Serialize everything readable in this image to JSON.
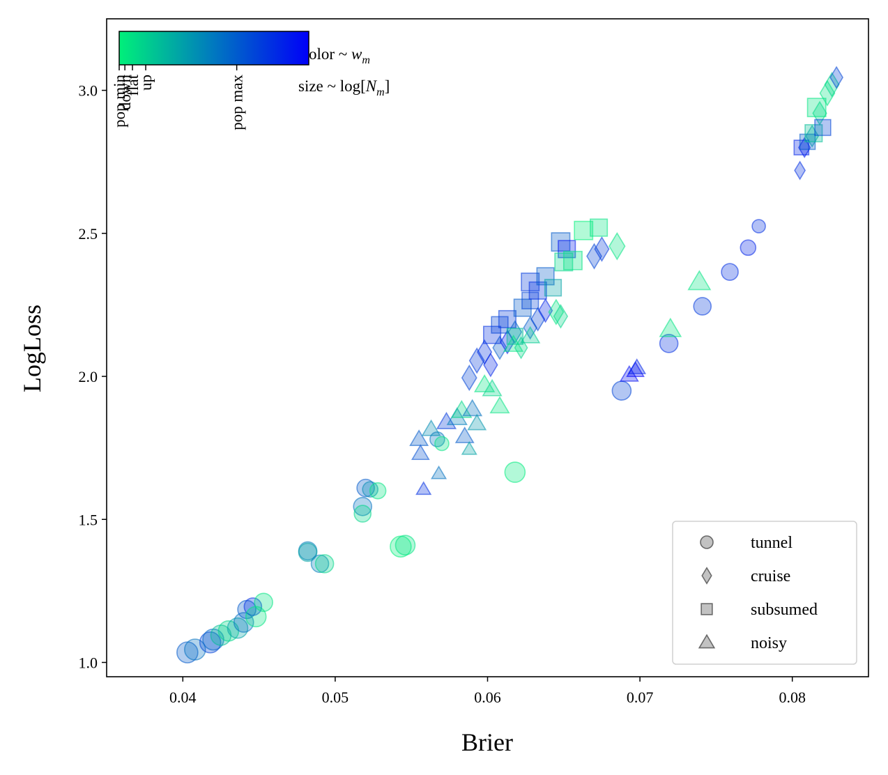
{
  "chart_data": {
    "type": "scatter",
    "xlabel": "Brier",
    "ylabel": "LogLoss",
    "xlim": [
      0.035,
      0.085
    ],
    "ylim": [
      0.95,
      3.25
    ],
    "xticks": [
      "0.04",
      "0.05",
      "0.06",
      "0.07",
      "0.08"
    ],
    "xtick_values": [
      0.04,
      0.05,
      0.06,
      0.07,
      0.08
    ],
    "yticks": [
      "1.0",
      "1.5",
      "2.0",
      "2.5",
      "3.0"
    ],
    "ytick_values": [
      1.0,
      1.5,
      2.0,
      2.5,
      3.0
    ],
    "grid": false,
    "legend": {
      "placement": "lower-right",
      "entries": [
        {
          "label": "tunnel",
          "marker": "circle"
        },
        {
          "label": "cruise",
          "marker": "diamond"
        },
        {
          "label": "subsumed",
          "marker": "square"
        },
        {
          "label": "noisy",
          "marker": "triangle"
        }
      ]
    },
    "colorbar": {
      "placement": "top-left",
      "colormap": [
        "#00f07a",
        "#0070c0",
        "#0000f8"
      ],
      "tick_labels": [
        "pop min",
        "down",
        "flat",
        "up",
        "pop max"
      ],
      "tick_positions": [
        0.0,
        0.03,
        0.07,
        0.14,
        0.62
      ],
      "annotation_color_prefix": "olor ~ ",
      "annotation_color_math": "w",
      "annotation_color_sub": "m",
      "annotation_size_prefix": "size ~ log[",
      "annotation_size_math": "N",
      "annotation_size_sub": "m",
      "annotation_size_suffix": "]"
    },
    "series": [
      {
        "marker": "circle",
        "points": [
          [
            0.0403,
            1.035,
            0.6,
            1.0
          ],
          [
            0.0408,
            1.045,
            0.5,
            1.0
          ],
          [
            0.0418,
            1.07,
            0.7,
            1.0
          ],
          [
            0.042,
            1.08,
            0.55,
            1.0
          ],
          [
            0.0425,
            1.095,
            0.2,
            0.95
          ],
          [
            0.043,
            1.11,
            0.1,
            0.95
          ],
          [
            0.0436,
            1.12,
            0.3,
            0.95
          ],
          [
            0.044,
            1.14,
            0.5,
            0.9
          ],
          [
            0.0442,
            1.185,
            0.6,
            0.8
          ],
          [
            0.0446,
            1.195,
            0.8,
            0.75
          ],
          [
            0.0448,
            1.16,
            0.05,
            0.95
          ],
          [
            0.0453,
            1.21,
            0.05,
            0.8
          ],
          [
            0.0482,
            1.39,
            0.45,
            0.8
          ],
          [
            0.0482,
            1.385,
            0.3,
            0.8
          ],
          [
            0.049,
            1.345,
            0.45,
            0.75
          ],
          [
            0.0493,
            1.345,
            0.1,
            0.8
          ],
          [
            0.0518,
            1.545,
            0.5,
            0.8
          ],
          [
            0.0518,
            1.52,
            0.1,
            0.7
          ],
          [
            0.052,
            1.61,
            0.6,
            0.75
          ],
          [
            0.0523,
            1.605,
            0.4,
            0.6
          ],
          [
            0.0528,
            1.6,
            0.05,
            0.65
          ],
          [
            0.0543,
            1.405,
            0.0,
            1.0
          ],
          [
            0.0546,
            1.41,
            0.05,
            0.9
          ],
          [
            0.0567,
            1.78,
            0.5,
            0.55
          ],
          [
            0.057,
            1.765,
            0.05,
            0.5
          ],
          [
            0.0618,
            1.665,
            0.02,
            0.95
          ],
          [
            0.0688,
            1.95,
            0.7,
            0.85
          ],
          [
            0.0719,
            2.115,
            0.8,
            0.8
          ],
          [
            0.0741,
            2.245,
            0.75,
            0.75
          ],
          [
            0.0759,
            2.365,
            0.8,
            0.7
          ],
          [
            0.0771,
            2.45,
            0.85,
            0.6
          ],
          [
            0.0778,
            2.525,
            0.8,
            0.45
          ]
        ]
      },
      {
        "marker": "diamond",
        "points": [
          [
            0.0588,
            1.995,
            0.7,
            0.9
          ],
          [
            0.0593,
            2.055,
            0.75,
            0.9
          ],
          [
            0.0598,
            2.085,
            0.8,
            0.85
          ],
          [
            0.0602,
            2.04,
            0.85,
            0.8
          ],
          [
            0.0608,
            2.1,
            0.6,
            0.8
          ],
          [
            0.0613,
            2.12,
            0.9,
            0.8
          ],
          [
            0.0618,
            2.155,
            0.5,
            0.75
          ],
          [
            0.0622,
            2.1,
            0.1,
            0.7
          ],
          [
            0.0628,
            2.17,
            0.6,
            0.75
          ],
          [
            0.0633,
            2.2,
            0.7,
            0.8
          ],
          [
            0.0638,
            2.23,
            0.85,
            0.8
          ],
          [
            0.0645,
            2.225,
            0.05,
            0.9
          ],
          [
            0.0648,
            2.21,
            0.1,
            0.8
          ],
          [
            0.067,
            2.42,
            0.7,
            0.9
          ],
          [
            0.0675,
            2.445,
            0.75,
            0.85
          ],
          [
            0.0685,
            2.455,
            0.05,
            1.0
          ],
          [
            0.0805,
            2.72,
            0.8,
            0.5
          ],
          [
            0.0808,
            2.8,
            0.9,
            0.6
          ],
          [
            0.0813,
            2.84,
            0.3,
            0.7
          ],
          [
            0.0818,
            2.92,
            0.1,
            0.8
          ],
          [
            0.0823,
            2.99,
            0.05,
            0.9
          ],
          [
            0.0826,
            3.02,
            0.1,
            0.85
          ],
          [
            0.0829,
            3.045,
            0.7,
            0.7
          ]
        ]
      },
      {
        "marker": "square",
        "points": [
          [
            0.0603,
            2.145,
            0.8,
            0.9
          ],
          [
            0.0608,
            2.18,
            0.7,
            0.85
          ],
          [
            0.0613,
            2.2,
            0.75,
            0.9
          ],
          [
            0.0618,
            2.14,
            0.2,
            0.8
          ],
          [
            0.0623,
            2.24,
            0.6,
            0.9
          ],
          [
            0.0628,
            2.265,
            0.7,
            0.85
          ],
          [
            0.0628,
            2.33,
            0.75,
            0.95
          ],
          [
            0.0633,
            2.3,
            0.8,
            0.9
          ],
          [
            0.0638,
            2.35,
            0.6,
            0.9
          ],
          [
            0.0643,
            2.31,
            0.3,
            0.85
          ],
          [
            0.0648,
            2.47,
            0.6,
            1.0
          ],
          [
            0.0652,
            2.445,
            0.9,
            0.9
          ],
          [
            0.065,
            2.4,
            0.1,
            0.95
          ],
          [
            0.0656,
            2.405,
            0.05,
            1.0
          ],
          [
            0.0663,
            2.51,
            0.0,
            1.0
          ],
          [
            0.0673,
            2.52,
            0.05,
            0.9
          ],
          [
            0.0806,
            2.8,
            0.85,
            0.7
          ],
          [
            0.081,
            2.82,
            0.6,
            0.75
          ],
          [
            0.0814,
            2.85,
            0.2,
            0.9
          ],
          [
            0.0816,
            2.94,
            0.05,
            1.0
          ],
          [
            0.082,
            2.87,
            0.7,
            0.8
          ]
        ]
      },
      {
        "marker": "triangle",
        "points": [
          [
            0.0555,
            1.78,
            0.6,
            0.55
          ],
          [
            0.0556,
            1.73,
            0.65,
            0.5
          ],
          [
            0.0558,
            1.605,
            0.8,
            0.35
          ],
          [
            0.0563,
            1.815,
            0.4,
            0.55
          ],
          [
            0.0568,
            1.66,
            0.5,
            0.35
          ],
          [
            0.0573,
            1.84,
            0.75,
            0.6
          ],
          [
            0.058,
            1.855,
            0.45,
            0.65
          ],
          [
            0.0583,
            1.88,
            0.1,
            0.65
          ],
          [
            0.0585,
            1.79,
            0.6,
            0.55
          ],
          [
            0.0588,
            1.745,
            0.3,
            0.35
          ],
          [
            0.059,
            1.885,
            0.5,
            0.6
          ],
          [
            0.0593,
            1.835,
            0.35,
            0.55
          ],
          [
            0.0598,
            1.97,
            0.05,
            0.65
          ],
          [
            0.0603,
            1.955,
            0.1,
            0.6
          ],
          [
            0.0608,
            1.895,
            0.05,
            0.6
          ],
          [
            0.0617,
            2.11,
            0.05,
            0.6
          ],
          [
            0.0628,
            2.14,
            0.15,
            0.6
          ],
          [
            0.0693,
            2.005,
            0.95,
            0.55
          ],
          [
            0.0697,
            2.02,
            1.0,
            0.5
          ],
          [
            0.0698,
            2.03,
            0.85,
            0.5
          ],
          [
            0.072,
            2.165,
            0.05,
            0.75
          ],
          [
            0.0739,
            2.33,
            0.05,
            0.8
          ]
        ]
      }
    ]
  }
}
